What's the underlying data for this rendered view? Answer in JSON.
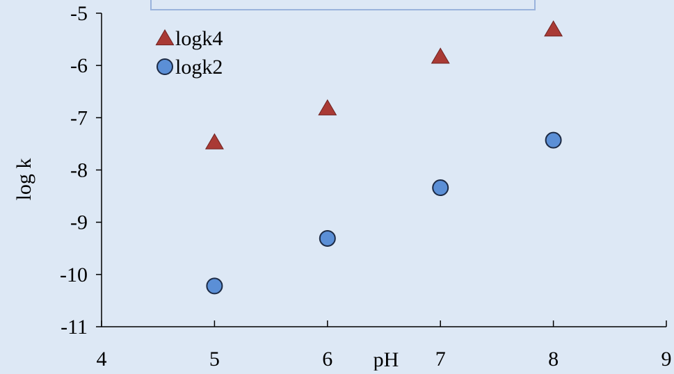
{
  "chart_data": {
    "type": "scatter",
    "title": "",
    "xlabel": "pH",
    "ylabel": "log k",
    "xlim": [
      4,
      9
    ],
    "ylim": [
      -11,
      -5
    ],
    "x_ticks": [
      4,
      5,
      6,
      7,
      8,
      9
    ],
    "y_ticks": [
      -11,
      -10,
      -9,
      -8,
      -7,
      -6,
      -5
    ],
    "grid": false,
    "legend_position": "top-left",
    "series": [
      {
        "name": "logk4",
        "marker": "triangle",
        "color": "#a93a35",
        "edge_color": "#6e2220",
        "x": [
          5,
          6,
          7,
          8
        ],
        "y": [
          -7.47,
          -6.82,
          -5.83,
          -5.31
        ]
      },
      {
        "name": "logk2",
        "marker": "circle",
        "color": "#5b8fd6",
        "edge_color": "#1c2a44",
        "x": [
          5,
          6,
          7,
          8
        ],
        "y": [
          -10.22,
          -9.31,
          -8.34,
          -7.43
        ]
      }
    ]
  }
}
